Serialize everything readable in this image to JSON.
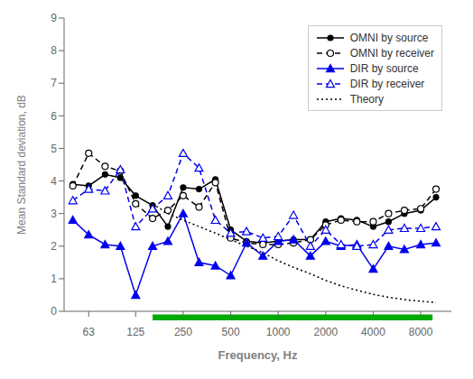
{
  "chart_data": {
    "type": "line",
    "x_label": "Frequency, Hz",
    "y_label": "Mean Standard deviation, dB",
    "log": "x",
    "xlim": [
      44,
      12500
    ],
    "xticks": [
      63,
      125,
      250,
      500,
      1000,
      2000,
      4000,
      8000
    ],
    "ylim": [
      0,
      9
    ],
    "yticks": [
      0,
      1,
      2,
      3,
      4,
      5,
      6,
      7,
      8,
      9
    ],
    "grid": false,
    "legend": "upper right",
    "x": [
      50,
      63,
      80,
      100,
      125,
      160,
      200,
      250,
      315,
      400,
      500,
      630,
      800,
      1000,
      1250,
      1600,
      2000,
      2500,
      3150,
      4000,
      5000,
      6300,
      8000,
      10000
    ],
    "series": [
      {
        "name": "OMNI by source",
        "color": "#000000",
        "marker": "circle",
        "line_style": "solid",
        "values": [
          3.9,
          3.85,
          4.2,
          4.1,
          3.55,
          3.25,
          2.6,
          3.8,
          3.75,
          4.05,
          2.5,
          2.15,
          2.1,
          2.15,
          2.2,
          2.2,
          2.75,
          2.85,
          2.8,
          2.6,
          2.75,
          3.0,
          3.1,
          3.5
        ]
      },
      {
        "name": "OMNI by receiver",
        "color": "#000000",
        "marker": "open_circle",
        "line_style": "dashed",
        "values": [
          3.85,
          4.85,
          4.45,
          4.3,
          3.3,
          2.85,
          3.1,
          3.55,
          3.2,
          3.95,
          2.25,
          2.1,
          2.05,
          2.05,
          2.1,
          2.2,
          2.65,
          2.8,
          2.75,
          2.75,
          3.0,
          3.1,
          3.15,
          3.75
        ]
      },
      {
        "name": "DIR by source",
        "color": "#0000EE",
        "marker": "triangle",
        "line_style": "solid",
        "values": [
          2.8,
          2.35,
          2.05,
          2.0,
          0.5,
          2.0,
          2.15,
          3.0,
          1.5,
          1.4,
          1.1,
          2.1,
          1.7,
          2.15,
          2.2,
          1.7,
          2.15,
          2.0,
          2.05,
          1.3,
          2.0,
          1.9,
          2.05,
          2.1
        ]
      },
      {
        "name": "DIR by receiver",
        "color": "#0000EE",
        "marker": "open_triangle",
        "line_style": "dashed",
        "values": [
          3.4,
          3.75,
          3.7,
          4.35,
          2.6,
          3.15,
          3.55,
          4.85,
          4.4,
          2.8,
          2.4,
          2.45,
          2.25,
          2.3,
          2.95,
          2.0,
          2.5,
          2.05,
          2.0,
          2.05,
          2.5,
          2.55,
          2.55,
          2.6
        ]
      },
      {
        "name": "Theory",
        "color": "#000000",
        "marker": "none",
        "line_style": "dotted",
        "x": [
          160,
          200,
          250,
          315,
          400,
          500,
          630,
          800,
          1000,
          1250,
          1600,
          2000,
          2500,
          3150,
          4000,
          5000,
          6300,
          8000,
          10000
        ],
        "values": [
          3.3,
          3.0,
          2.8,
          2.6,
          2.4,
          2.2,
          2.0,
          1.8,
          1.55,
          1.35,
          1.15,
          0.95,
          0.78,
          0.65,
          0.52,
          0.43,
          0.36,
          0.31,
          0.27
        ]
      }
    ],
    "frequency_band": {
      "x": [
        160,
        9500
      ],
      "y": -0.28,
      "height": 0.18,
      "color": "#00AA00"
    }
  }
}
